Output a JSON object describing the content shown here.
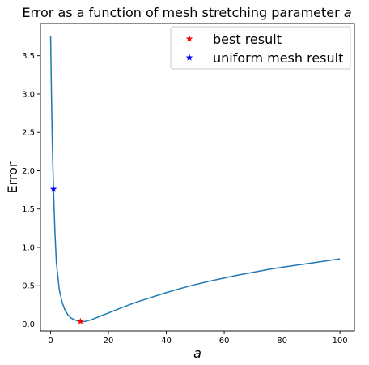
{
  "chart_data": {
    "type": "line",
    "title": "Error as a function of mesh stretching parameter",
    "title_symbol": "a",
    "xlabel": "a",
    "ylabel": "Error",
    "xlim": [
      -3.5,
      105
    ],
    "ylim": [
      -0.09,
      3.92
    ],
    "xticks": [
      0,
      20,
      40,
      60,
      80,
      100
    ],
    "yticks": [
      0.0,
      0.5,
      1.0,
      1.5,
      2.0,
      2.5,
      3.0,
      3.5
    ],
    "xtick_labels": [
      "0",
      "20",
      "40",
      "60",
      "80",
      "100"
    ],
    "ytick_labels": [
      "0.0",
      "0.5",
      "1.0",
      "1.5",
      "2.0",
      "2.5",
      "3.0",
      "3.5"
    ],
    "grid": false,
    "legend_position": "top-right",
    "series": [
      {
        "color": "#1f77b4",
        "x": [
          0,
          0.3,
          0.6,
          1,
          1.5,
          2,
          3,
          4,
          5,
          6,
          7,
          8,
          9,
          10,
          11,
          12,
          14,
          16,
          18,
          20,
          25,
          30,
          35,
          40,
          45,
          50,
          55,
          60,
          65,
          70,
          75,
          80,
          85,
          90,
          95,
          100
        ],
        "y": [
          3.76,
          3.0,
          2.35,
          1.76,
          1.2,
          0.8,
          0.45,
          0.28,
          0.18,
          0.12,
          0.08,
          0.06,
          0.045,
          0.035,
          0.032,
          0.035,
          0.055,
          0.085,
          0.115,
          0.145,
          0.22,
          0.29,
          0.35,
          0.41,
          0.465,
          0.515,
          0.56,
          0.6,
          0.64,
          0.675,
          0.71,
          0.74,
          0.768,
          0.795,
          0.822,
          0.85
        ]
      }
    ],
    "markers": [
      {
        "name": "best result",
        "x": 10.3,
        "y": 0.035,
        "color": "#ff0000",
        "symbol": "star"
      },
      {
        "name": "uniform mesh result",
        "x": 1.0,
        "y": 1.76,
        "color": "#0000ff",
        "symbol": "star"
      }
    ],
    "legend": [
      "best result",
      "uniform mesh result"
    ]
  }
}
